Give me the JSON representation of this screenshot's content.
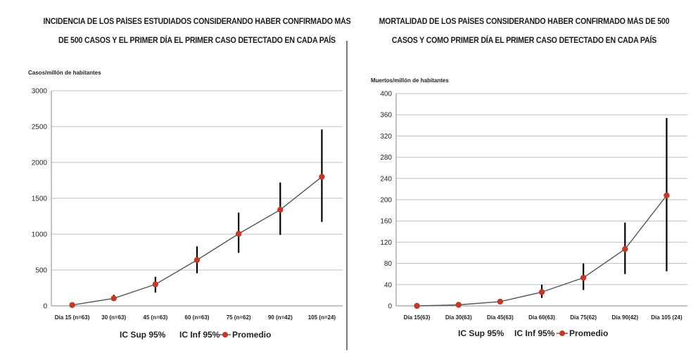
{
  "chart_data": [
    {
      "type": "line",
      "title": "INCIDENCIA DE LOS PAÍSES ESTUDIADOS CONSIDERANDO HABER CONFIRMADO MÁS DE 500 CASOS Y EL PRIMER DÍA EL PRIMER CASO DETECTADO EN CADA PAÍS",
      "title_lines": [
        "INCIDENCIA DE LOS PAÍSES ESTUDIADOS CONSIDERANDO HABER CONFIRMADO MÁS",
        "DE 500 CASOS Y EL PRIMER DÍA EL PRIMER CASO DETECTADO EN CADA PAÍS"
      ],
      "ylabel": "Casos/millón de habitantes",
      "ylim": [
        0,
        3000
      ],
      "yticks": [
        0,
        500,
        1000,
        1500,
        2000,
        2500,
        3000
      ],
      "grid": true,
      "categories": [
        "Día 15 (n=63)",
        "30 (n=63)",
        "45 (n=63)",
        "60 (n=63)",
        "75 (n=62)",
        "90 (n=42)",
        "105 (n=24)"
      ],
      "series": [
        {
          "name": "IC Sup 95%",
          "values": [
            25,
            155,
            405,
            830,
            1300,
            1720,
            2460
          ]
        },
        {
          "name": "IC Inf 95%",
          "values": [
            5,
            75,
            185,
            455,
            740,
            990,
            1170
          ]
        },
        {
          "name": "Promedio",
          "values": [
            12,
            105,
            300,
            640,
            1005,
            1340,
            1800
          ]
        }
      ],
      "legend_position": "bottom"
    },
    {
      "type": "line",
      "title": "MORTALIDAD DE LOS PAÍSES CONSIDERANDO HABER CONFIRMADO MÁS DE 500 CASOS Y COMO PRIMER DÍA EL PRIMER CASO DETECTADO EN CADA PAÍS",
      "title_lines": [
        "MORTALIDAD DE LOS PAÍSES CONSIDERANDO HABER CONFIRMADO MÁS DE 500",
        "CASOS Y COMO PRIMER DÍA EL PRIMER CASO DETECTADO EN CADA PAÍS"
      ],
      "ylabel": "Muertos/millón de habitantes",
      "ylim": [
        0,
        400
      ],
      "yticks": [
        0,
        40,
        80,
        120,
        160,
        200,
        240,
        280,
        320,
        360,
        400
      ],
      "grid": true,
      "categories": [
        "Día 15(63)",
        "Día 30(63)",
        "Día 45(63)",
        "Día 60(63)",
        "Día 75(62)",
        "Día 90(42)",
        "Día 105 (24)"
      ],
      "series": [
        {
          "name": "IC Sup 95%",
          "values": [
            1,
            4,
            13,
            40,
            80,
            157,
            354
          ]
        },
        {
          "name": "IC Inf 95%",
          "values": [
            0,
            1,
            3,
            15,
            30,
            60,
            65
          ]
        },
        {
          "name": "Promedio",
          "values": [
            0,
            2,
            8,
            26,
            53,
            107,
            208
          ]
        }
      ],
      "legend_position": "bottom"
    }
  ],
  "colors": {
    "marker": "#c0392b",
    "line": "#555555",
    "errorbar": "#000000",
    "grid": "#bfbfbf"
  }
}
